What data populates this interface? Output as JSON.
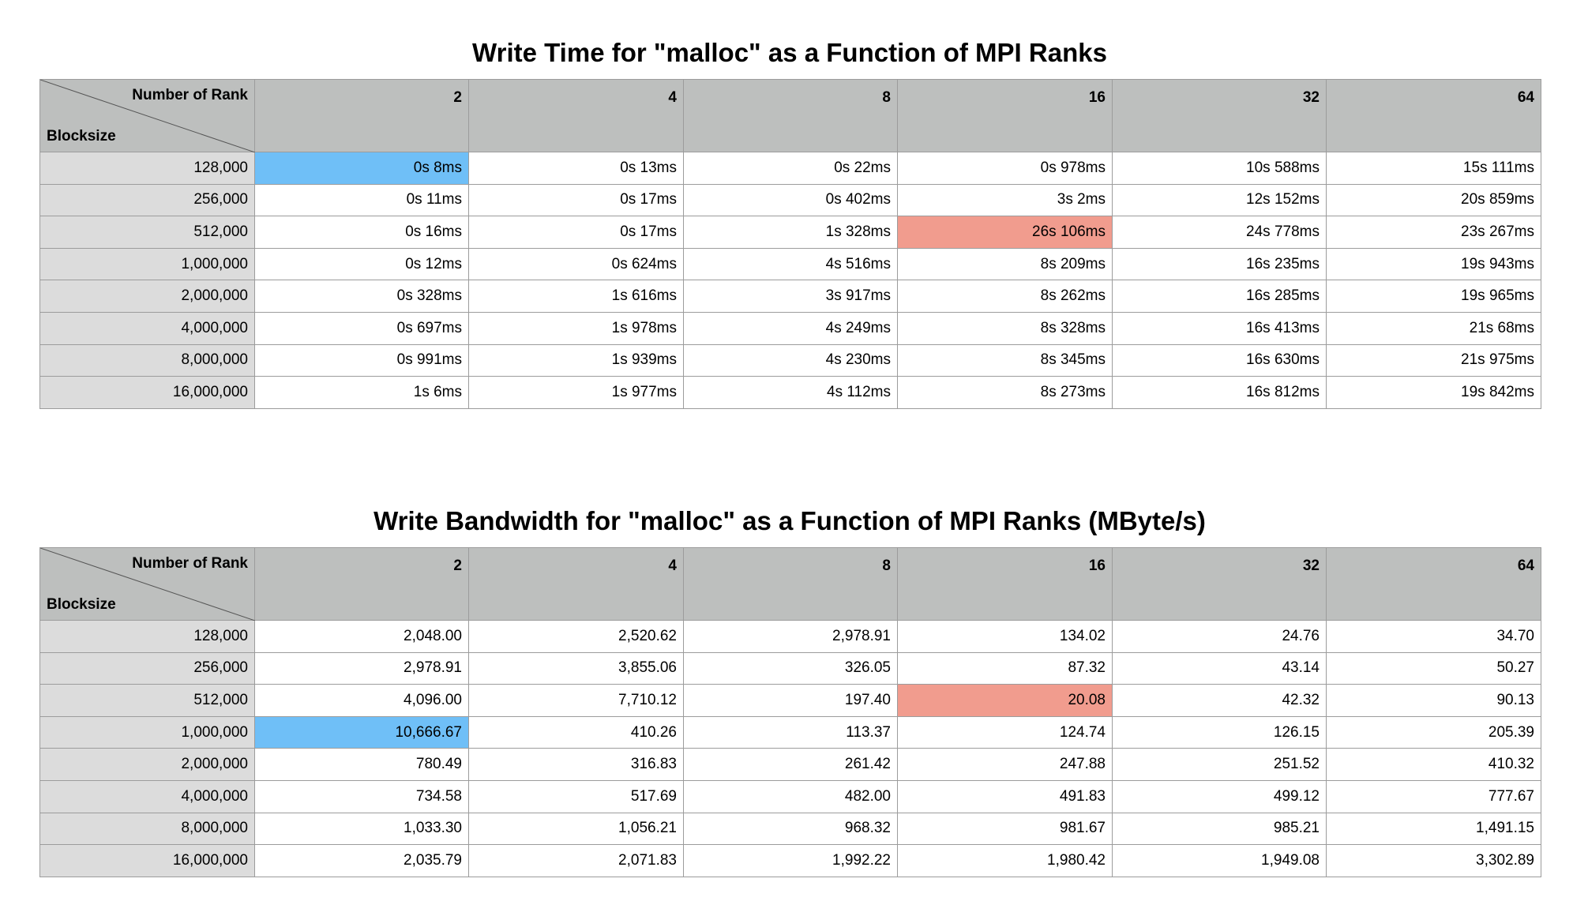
{
  "chart_data": [
    {
      "type": "table",
      "title": "Write Time for \"malloc\" as a Function of MPI Ranks",
      "corner_top": "Number of Rank",
      "corner_bottom": "Blocksize",
      "columns": [
        "2",
        "4",
        "8",
        "16",
        "32",
        "64"
      ],
      "rows": [
        {
          "label": "128,000",
          "values": [
            "0s 8ms",
            "0s 13ms",
            "0s 22ms",
            "0s 978ms",
            "10s 588ms",
            "15s 111ms"
          ]
        },
        {
          "label": "256,000",
          "values": [
            "0s 11ms",
            "0s 17ms",
            "0s 402ms",
            "3s 2ms",
            "12s 152ms",
            "20s 859ms"
          ]
        },
        {
          "label": "512,000",
          "values": [
            "0s 16ms",
            "0s 17ms",
            "1s 328ms",
            "26s 106ms",
            "24s 778ms",
            "23s 267ms"
          ]
        },
        {
          "label": "1,000,000",
          "values": [
            "0s 12ms",
            "0s 624ms",
            "4s 516ms",
            "8s 209ms",
            "16s 235ms",
            "19s 943ms"
          ]
        },
        {
          "label": "2,000,000",
          "values": [
            "0s 328ms",
            "1s 616ms",
            "3s 917ms",
            "8s 262ms",
            "16s 285ms",
            "19s 965ms"
          ]
        },
        {
          "label": "4,000,000",
          "values": [
            "0s 697ms",
            "1s 978ms",
            "4s 249ms",
            "8s 328ms",
            "16s 413ms",
            "21s 68ms"
          ]
        },
        {
          "label": "8,000,000",
          "values": [
            "0s 991ms",
            "1s 939ms",
            "4s 230ms",
            "8s 345ms",
            "16s 630ms",
            "21s 975ms"
          ]
        },
        {
          "label": "16,000,000",
          "values": [
            "1s 6ms",
            "1s 977ms",
            "4s 112ms",
            "8s 273ms",
            "16s 812ms",
            "19s 842ms"
          ]
        }
      ],
      "highlight_min": {
        "row": 0,
        "col": 0,
        "color": "#6fbff7"
      },
      "highlight_max": {
        "row": 2,
        "col": 3,
        "color": "#f19c8e"
      }
    },
    {
      "type": "table",
      "title": "Write Bandwidth for \"malloc\" as a Function of MPI Ranks (MByte/s)",
      "corner_top": "Number of Rank",
      "corner_bottom": "Blocksize",
      "columns": [
        "2",
        "4",
        "8",
        "16",
        "32",
        "64"
      ],
      "rows": [
        {
          "label": "128,000",
          "values": [
            "2,048.00",
            "2,520.62",
            "2,978.91",
            "134.02",
            "24.76",
            "34.70"
          ]
        },
        {
          "label": "256,000",
          "values": [
            "2,978.91",
            "3,855.06",
            "326.05",
            "87.32",
            "43.14",
            "50.27"
          ]
        },
        {
          "label": "512,000",
          "values": [
            "4,096.00",
            "7,710.12",
            "197.40",
            "20.08",
            "42.32",
            "90.13"
          ]
        },
        {
          "label": "1,000,000",
          "values": [
            "10,666.67",
            "410.26",
            "113.37",
            "124.74",
            "126.15",
            "205.39"
          ]
        },
        {
          "label": "2,000,000",
          "values": [
            "780.49",
            "316.83",
            "261.42",
            "247.88",
            "251.52",
            "410.32"
          ]
        },
        {
          "label": "4,000,000",
          "values": [
            "734.58",
            "517.69",
            "482.00",
            "491.83",
            "499.12",
            "777.67"
          ]
        },
        {
          "label": "8,000,000",
          "values": [
            "1,033.30",
            "1,056.21",
            "968.32",
            "981.67",
            "985.21",
            "1,491.15"
          ]
        },
        {
          "label": "16,000,000",
          "values": [
            "2,035.79",
            "2,071.83",
            "1,992.22",
            "1,980.42",
            "1,949.08",
            "3,302.89"
          ]
        }
      ],
      "highlight_min": {
        "row": 2,
        "col": 3,
        "color": "#f19c8e"
      },
      "highlight_max": {
        "row": 3,
        "col": 0,
        "color": "#6fbff7"
      }
    }
  ]
}
